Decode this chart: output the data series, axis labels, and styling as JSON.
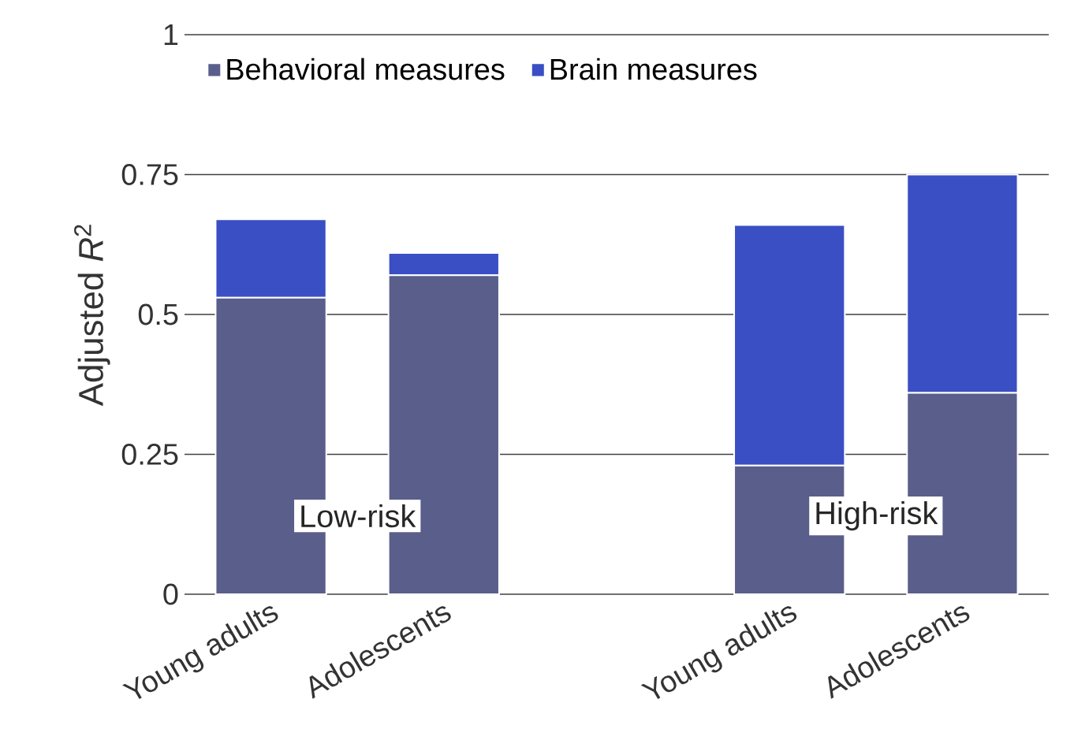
{
  "chart_data": {
    "type": "bar",
    "stacked": true,
    "ylabel": "Adjusted *R*$^{2}$",
    "categories": [
      "Young adults",
      "Adolescents",
      null,
      "Young adults",
      "Adolescents"
    ],
    "series": [
      {
        "name": "Behavioral measures",
        "color": "#5a5e8b",
        "values": [
          0.53,
          0.57,
          null,
          0.23,
          0.36
        ]
      },
      {
        "name": "Brain measures",
        "color": "#3a4fc4",
        "values": [
          0.14,
          0.04,
          null,
          0.43,
          0.39
        ]
      }
    ],
    "ylim": [
      0,
      1
    ],
    "yticks": [
      0,
      0.25,
      0.5,
      0.75,
      1
    ],
    "grid": "y",
    "legend": "top left",
    "annotations": [
      "Low-risk",
      "High-risk"
    ]
  }
}
